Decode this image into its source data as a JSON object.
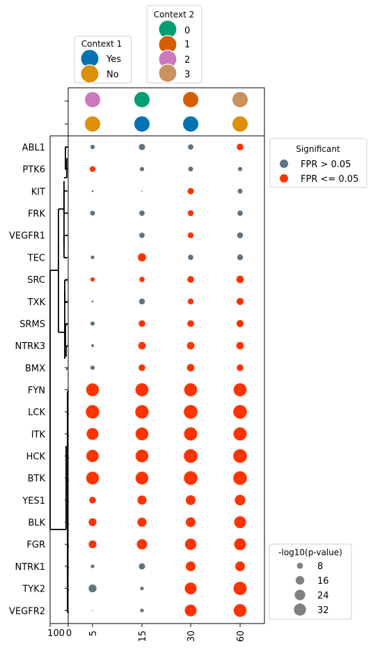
{
  "chart_data": {
    "type": "scatter",
    "title": "",
    "xlabel": "",
    "ylabel": "",
    "x_categories": [
      "5",
      "15",
      "30",
      "60"
    ],
    "rows": [
      "ABL1",
      "PTK6",
      "KIT",
      "FRK",
      "VEGFR1",
      "TEC",
      "SRC",
      "TXK",
      "SRMS",
      "NTRK3",
      "BMX",
      "FYN",
      "LCK",
      "ITK",
      "HCK",
      "BTK",
      "YES1",
      "BLK",
      "FGR",
      "NTRK1",
      "TYK2",
      "VEGFR2"
    ],
    "neglog10_pvalue": [
      [
        4,
        8,
        6,
        9
      ],
      [
        7,
        4,
        5,
        4
      ],
      [
        1,
        0.5,
        8,
        5
      ],
      [
        5,
        6,
        7,
        6
      ],
      [
        null,
        6,
        7,
        7
      ],
      [
        3,
        13,
        6,
        7
      ],
      [
        4,
        6,
        9,
        11
      ],
      [
        1,
        7,
        7,
        10
      ],
      [
        4,
        9,
        9,
        10
      ],
      [
        2,
        11,
        11,
        11
      ],
      [
        4,
        9,
        11,
        9
      ],
      [
        30,
        31,
        31,
        31
      ],
      [
        33,
        33,
        34,
        34
      ],
      [
        26,
        30,
        32,
        32
      ],
      [
        28,
        30,
        34,
        34
      ],
      [
        30,
        30,
        34,
        34
      ],
      [
        9,
        16,
        18,
        21
      ],
      [
        12,
        16,
        18,
        26
      ],
      [
        12,
        20,
        24,
        26
      ],
      [
        3,
        8,
        18,
        18
      ],
      [
        12,
        3,
        26,
        32
      ],
      [
        0.5,
        3,
        26,
        30
      ]
    ],
    "significant": [
      [
        false,
        false,
        false,
        true
      ],
      [
        true,
        false,
        false,
        false
      ],
      [
        false,
        false,
        true,
        false
      ],
      [
        false,
        false,
        true,
        false
      ],
      [
        null,
        false,
        true,
        false
      ],
      [
        false,
        true,
        false,
        false
      ],
      [
        true,
        true,
        true,
        true
      ],
      [
        false,
        false,
        true,
        true
      ],
      [
        false,
        true,
        true,
        true
      ],
      [
        false,
        true,
        true,
        true
      ],
      [
        false,
        true,
        true,
        true
      ],
      [
        true,
        true,
        true,
        true
      ],
      [
        true,
        true,
        true,
        true
      ],
      [
        true,
        true,
        true,
        true
      ],
      [
        true,
        true,
        true,
        true
      ],
      [
        true,
        true,
        true,
        true
      ],
      [
        true,
        true,
        true,
        true
      ],
      [
        true,
        true,
        true,
        true
      ],
      [
        true,
        true,
        true,
        true
      ],
      [
        false,
        false,
        true,
        true
      ],
      [
        false,
        false,
        true,
        true
      ],
      [
        false,
        false,
        true,
        true
      ]
    ],
    "context_rows": [
      {
        "name": "Context 2",
        "values": [
          "2",
          "0",
          "1",
          "3"
        ]
      },
      {
        "name": "Context 1",
        "values": [
          "No",
          "Yes",
          "Yes",
          "No"
        ]
      }
    ],
    "dendrogram_axis_ticks": [
      "100",
      "0"
    ],
    "legends": {
      "context1": {
        "title": "Context 1",
        "items": [
          {
            "label": "Yes",
            "color": "#0173b2"
          },
          {
            "label": "No",
            "color": "#de8f05"
          }
        ]
      },
      "context2": {
        "title": "Context 2",
        "items": [
          {
            "label": "0",
            "color": "#029e73"
          },
          {
            "label": "1",
            "color": "#d55e00"
          },
          {
            "label": "2",
            "color": "#cc78bc"
          },
          {
            "label": "3",
            "color": "#ca9161"
          }
        ]
      },
      "significant": {
        "title": "Significant",
        "items": [
          {
            "label": "FPR > 0.05",
            "color": "#5f7380"
          },
          {
            "label": "FPR <= 0.05",
            "color": "#ff3300"
          }
        ]
      },
      "size": {
        "title": "-log10(p-value)",
        "items": [
          {
            "label": "8",
            "value": 8
          },
          {
            "label": "16",
            "value": 16
          },
          {
            "label": "24",
            "value": 24
          },
          {
            "label": "32",
            "value": 32
          }
        ]
      }
    },
    "grid": false,
    "legend_placement": "top, right"
  }
}
